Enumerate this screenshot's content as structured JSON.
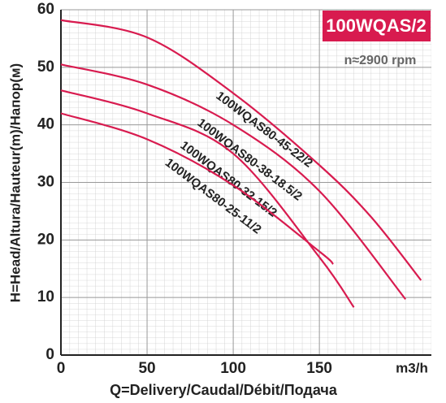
{
  "chart_data": {
    "type": "line",
    "badge": "100WQAS/2",
    "subtitle": "n≈2900 rpm",
    "x_label": "Q=Delivery/Caudal/Débit/Подача",
    "x_unit": "m3/h",
    "y_label": "H=Head/Altura/Hauteur(m)/Напор(м)",
    "xlim": [
      0,
      215
    ],
    "xticks": [
      0,
      50,
      100,
      150
    ],
    "ylim": [
      0,
      60
    ],
    "yticks": [
      0,
      10,
      20,
      30,
      40,
      50,
      60
    ],
    "grid": true,
    "series": [
      {
        "name": "100WQAS80-45-22/2",
        "color": "#d81b4f",
        "x": [
          0,
          50,
          100,
          150,
          180,
          209
        ],
        "values": [
          58.2,
          55.2,
          45.5,
          33,
          24,
          13
        ]
      },
      {
        "name": "100WQAS80-38-18.5/2",
        "color": "#d81b4f",
        "x": [
          0,
          50,
          100,
          150,
          200
        ],
        "values": [
          50.5,
          47,
          40,
          28.5,
          9.7
        ]
      },
      {
        "name": "100WQAS80-32-15/2",
        "color": "#d81b4f",
        "x": [
          0,
          50,
          100,
          150,
          170
        ],
        "values": [
          46,
          42,
          35,
          17,
          8.3
        ]
      },
      {
        "name": "100WQAS80-25-11/2",
        "color": "#d81b4f",
        "x": [
          0,
          50,
          100,
          150,
          158
        ],
        "values": [
          42,
          37.5,
          29.5,
          18,
          15.8
        ]
      }
    ]
  }
}
